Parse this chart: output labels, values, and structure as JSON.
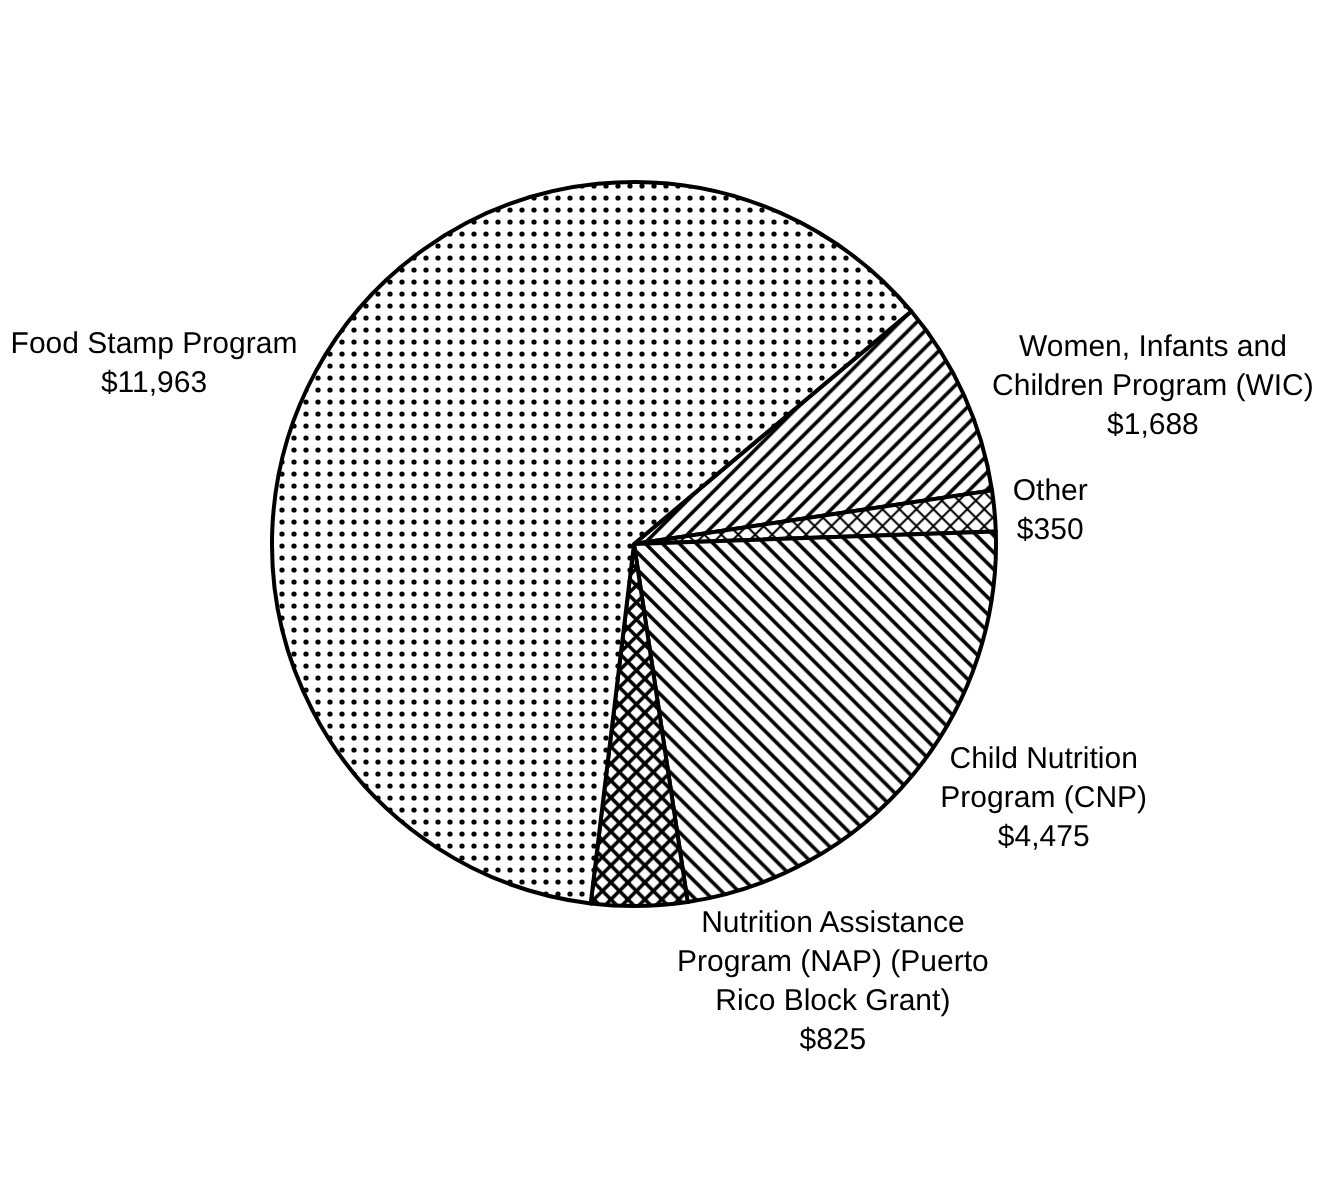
{
  "chart_data": {
    "type": "pie",
    "categories": [
      "Women, Infants and Children Program (WIC)",
      "Other",
      "Child Nutrition Program (CNP)",
      "Nutrition Assistance Program (NAP) (Puerto Rico Block Grant)",
      "Food Stamp Program"
    ],
    "values": [
      1688,
      350,
      4475,
      825,
      11963
    ],
    "value_labels": [
      "$1,688",
      "$350",
      "$4,475",
      "$825",
      "$11,963"
    ],
    "colors": [
      "#000000",
      "#000000",
      "#000000",
      "#000000",
      "#000000"
    ]
  }
}
